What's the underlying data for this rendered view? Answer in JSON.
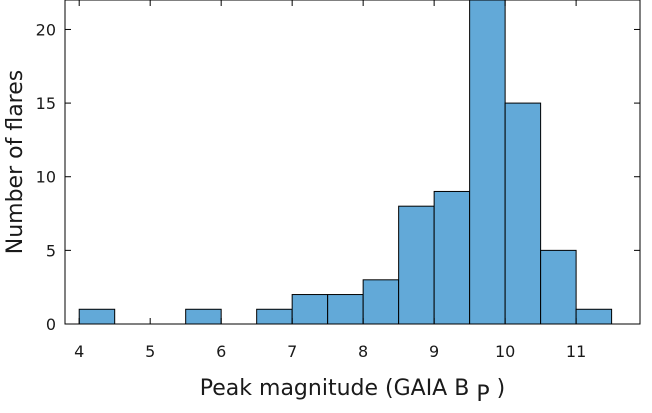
{
  "chart_data": {
    "type": "bar",
    "style": "histogram",
    "bin_edges": [
      4.0,
      4.5,
      5.0,
      5.5,
      6.0,
      6.5,
      7.0,
      7.5,
      8.0,
      8.5,
      9.0,
      9.5,
      10.0,
      10.5,
      11.0,
      11.5
    ],
    "values": [
      1,
      0,
      0,
      1,
      0,
      1,
      2,
      2,
      3,
      8,
      9,
      22,
      15,
      5,
      1
    ],
    "xlim": [
      3.8,
      11.9
    ],
    "ylim": [
      0,
      22
    ],
    "xticks": [
      4,
      5,
      6,
      7,
      8,
      9,
      10,
      11
    ],
    "yticks": [
      0,
      5,
      10,
      15,
      20
    ],
    "xtick_labels": [
      "4",
      "5",
      "6",
      "7",
      "8",
      "9",
      "10",
      "11"
    ],
    "ytick_labels": [
      "0",
      "5",
      "10",
      "15",
      "20"
    ],
    "xlabel_main": "Peak magnitude (GAIA B",
    "xlabel_sub": "P",
    "xlabel_close": ")",
    "ylabel": "Number of flares",
    "grid": false,
    "bar_color": "#62a9d8",
    "edge_color": "#000000"
  }
}
